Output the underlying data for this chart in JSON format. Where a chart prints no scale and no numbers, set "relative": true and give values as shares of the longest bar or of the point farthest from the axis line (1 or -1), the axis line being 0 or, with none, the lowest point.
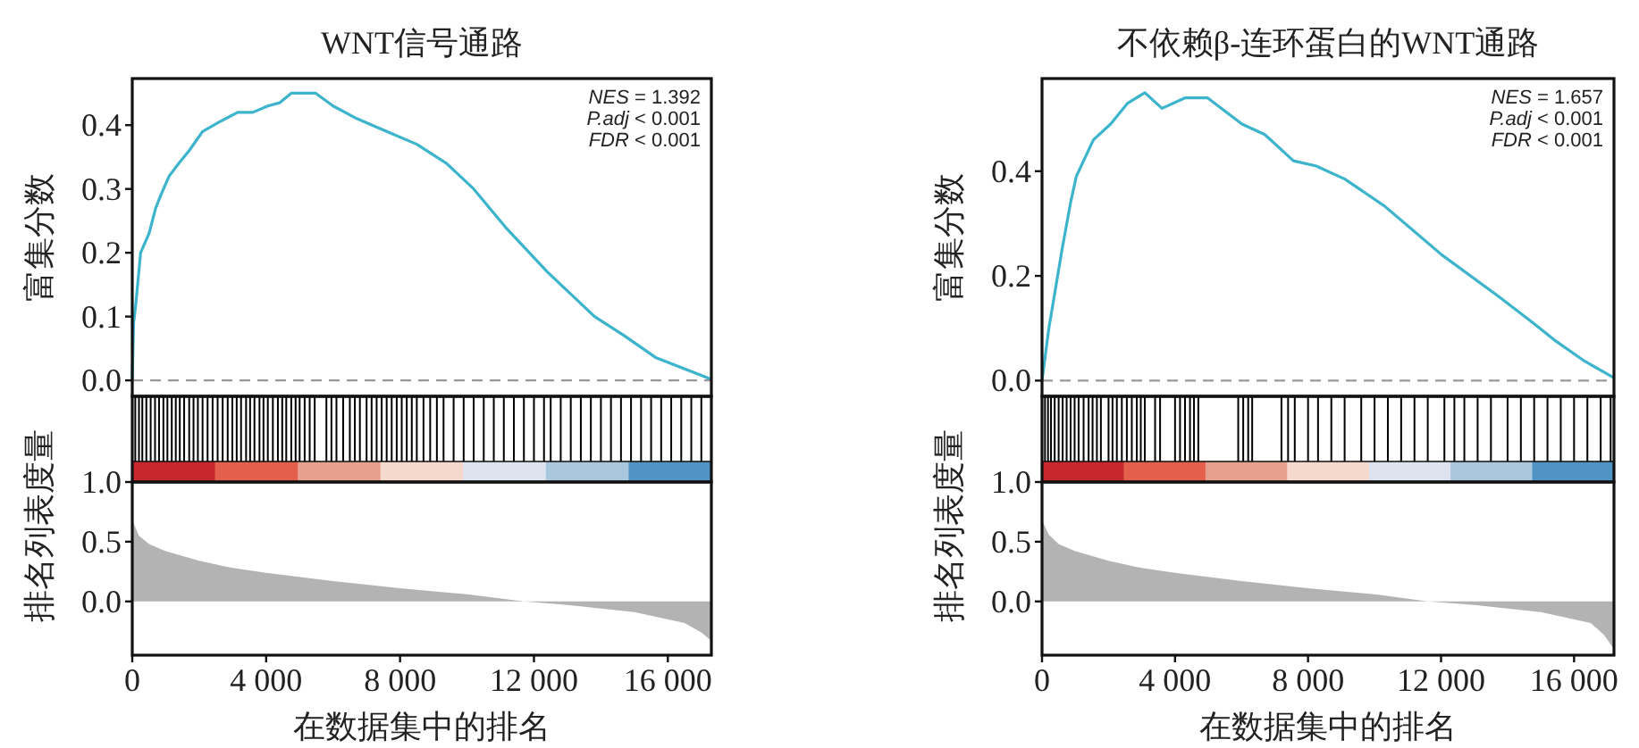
{
  "chart_data": [
    {
      "type": "line",
      "title": "WNT信号通路",
      "ylabel": "富集分数",
      "tick_labels": "y",
      "xlim": [
        0,
        17300
      ],
      "ylim": [
        -0.025,
        0.473
      ],
      "yticks": [
        {
          "value": 0,
          "label": "0.0"
        },
        {
          "value": 0.1,
          "label": "0.1"
        },
        {
          "value": 0.2,
          "label": "0.2"
        },
        {
          "value": 0.3,
          "label": "0.3"
        },
        {
          "value": 0.4,
          "label": "0.4"
        }
      ],
      "ref_lines": [
        {
          "axis": "y",
          "value": 0,
          "color": "#999999",
          "line_style": "dashed"
        }
      ],
      "annotations": [
        "NES = 1.392",
        "P.adj < 0.001",
        "FDR < 0.001"
      ],
      "series": [
        {
          "color": "#3cb4cc",
          "x": [
            0,
            40,
            107,
            250,
            500,
            700,
            850,
            1100,
            1390,
            1700,
            2100,
            2600,
            3150,
            3600,
            4050,
            4400,
            4750,
            5100,
            5480,
            6000,
            6720,
            7600,
            8500,
            9390,
            10200,
            11150,
            12400,
            13810,
            14700,
            15630,
            16400,
            17000,
            17230
          ],
          "values": [
            0,
            0.09,
            0.12,
            0.2,
            0.23,
            0.27,
            0.29,
            0.32,
            0.34,
            0.36,
            0.39,
            0.405,
            0.42,
            0.42,
            0.43,
            0.435,
            0.45,
            0.45,
            0.45,
            0.43,
            0.41,
            0.39,
            0.37,
            0.34,
            0.3,
            0.24,
            0.17,
            0.1,
            0.07,
            0.036,
            0.02,
            0.008,
            0.003
          ]
        }
      ]
    },
    {
      "type": "bar",
      "relative": true,
      "tick_labels": false,
      "xlim": [
        0,
        17300
      ],
      "x": [
        90,
        200,
        300,
        420,
        550,
        680,
        800,
        930,
        1050,
        1180,
        1300,
        1420,
        1550,
        1700,
        1830,
        1960,
        2100,
        2250,
        2400,
        2550,
        2700,
        2850,
        2990,
        3120,
        3250,
        3400,
        3520,
        3650,
        3800,
        3920,
        4050,
        4200,
        4350,
        4480,
        4600,
        4750,
        4880,
        5000,
        5150,
        5300,
        5450,
        5800,
        5950,
        6100,
        6300,
        6500,
        6650,
        6800,
        7000,
        7150,
        7300,
        7450,
        7600,
        7750,
        7900,
        8050,
        8200,
        8350,
        8500,
        8700,
        8900,
        9100,
        9300,
        9600,
        9900,
        10200,
        10500,
        10800,
        11100,
        11400,
        11700,
        12000,
        12300,
        12500,
        12800,
        13100,
        13400,
        13700,
        14000,
        14300,
        14600,
        14900,
        15200,
        15500,
        15800,
        16100,
        16400,
        16700,
        17000
      ],
      "series": [
        {
          "color": "#000000",
          "values": [
            1,
            1,
            1,
            1,
            1,
            1,
            1,
            1,
            1,
            1,
            1,
            1,
            1,
            1,
            1,
            1,
            1,
            1,
            1,
            1,
            1,
            1,
            1,
            1,
            1,
            1,
            1,
            1,
            1,
            1,
            1,
            1,
            1,
            1,
            1,
            1,
            1,
            1,
            1,
            1,
            1,
            1,
            1,
            1,
            1,
            1,
            1,
            1,
            1,
            1,
            1,
            1,
            1,
            1,
            1,
            1,
            1,
            1,
            1,
            1,
            1,
            1,
            1,
            1,
            1,
            1,
            1,
            1,
            1,
            1,
            1,
            1,
            1,
            1,
            1,
            1,
            1,
            1,
            1,
            1,
            1,
            1,
            1,
            1,
            1,
            1,
            1,
            1,
            1
          ]
        }
      ]
    },
    {
      "type": "area",
      "ylabel": "排名列表度量",
      "xlabel": "在数据集中的排名",
      "xlim": [
        0,
        17300
      ],
      "ylim": [
        -0.45,
        1.0
      ],
      "xticks": [
        0,
        {
          "value": 4000,
          "label": "4 000"
        },
        {
          "value": 8000,
          "label": "8 000"
        },
        {
          "value": 12000,
          "label": "12 000"
        },
        {
          "value": 16000,
          "label": "16 000"
        }
      ],
      "yticks": [
        {
          "value": 0,
          "label": "0.0"
        },
        {
          "value": 0.5,
          "label": "0.5"
        },
        {
          "value": 1,
          "label": "1.0"
        }
      ],
      "series": [
        {
          "color": "#b3b3b3",
          "x": [
            0,
            200,
            500,
            1000,
            2000,
            3000,
            4000,
            6000,
            8000,
            10000,
            11700,
            13000,
            15000,
            16500,
            17000,
            17300
          ],
          "values": [
            0.68,
            0.55,
            0.48,
            0.42,
            0.34,
            0.28,
            0.24,
            0.17,
            0.11,
            0.06,
            0,
            -0.03,
            -0.09,
            -0.18,
            -0.26,
            -0.33
          ]
        }
      ]
    },
    {
      "type": "line",
      "title": "不依赖β-连环蛋白的WNT通路",
      "ylabel": "富集分数",
      "tick_labels": "y",
      "xlim": [
        0,
        17200
      ],
      "ylim": [
        -0.03,
        0.577
      ],
      "yticks": [
        {
          "value": 0,
          "label": "0.0"
        },
        {
          "value": 0.2,
          "label": "0.2"
        },
        {
          "value": 0.4,
          "label": "0.4"
        }
      ],
      "ref_lines": [
        {
          "axis": "y",
          "value": 0,
          "color": "#999999",
          "line_style": "dashed"
        }
      ],
      "annotations": [
        "NES = 1.657",
        "P.adj < 0.001",
        "FDR < 0.001"
      ],
      "series": [
        {
          "color": "#3cb4cc",
          "x": [
            0,
            206,
            601,
            859,
            1031,
            1546,
            2062,
            2577,
            3092,
            3608,
            4295,
            4982,
            6013,
            6700,
            7559,
            8246,
            9105,
            10308,
            12026,
            13744,
            14775,
            15462,
            16321,
            17180
          ],
          "values": [
            0,
            0.1,
            0.25,
            0.34,
            0.39,
            0.46,
            0.49,
            0.53,
            0.55,
            0.52,
            0.54,
            0.54,
            0.49,
            0.47,
            0.42,
            0.41,
            0.385,
            0.333,
            0.24,
            0.16,
            0.11,
            0.075,
            0.037,
            0.006
          ]
        }
      ]
    },
    {
      "type": "bar",
      "relative": true,
      "tick_labels": false,
      "xlim": [
        0,
        17200
      ],
      "x": [
        90,
        180,
        270,
        380,
        500,
        620,
        740,
        860,
        980,
        1100,
        1250,
        1400,
        1520,
        1650,
        1770,
        2000,
        2120,
        2250,
        2400,
        2550,
        2700,
        2850,
        2970,
        3090,
        3400,
        3550,
        4000,
        4150,
        4300,
        4450,
        4570,
        4700,
        5900,
        6050,
        6200,
        6320,
        7200,
        7400,
        7600,
        8000,
        8300,
        8700,
        9100,
        9600,
        10000,
        10400,
        10800,
        11200,
        11600,
        12100,
        12400,
        12700,
        13100,
        13500,
        14000,
        14400,
        14800,
        15200,
        15600,
        16000,
        16400,
        16800,
        17100
      ],
      "series": [
        {
          "color": "#000000",
          "values": [
            1,
            1,
            1,
            1,
            1,
            1,
            1,
            1,
            1,
            1,
            1,
            1,
            1,
            1,
            1,
            1,
            1,
            1,
            1,
            1,
            1,
            1,
            1,
            1,
            1,
            1,
            1,
            1,
            1,
            1,
            1,
            1,
            1,
            1,
            1,
            1,
            1,
            1,
            1,
            1,
            1,
            1,
            1,
            1,
            1,
            1,
            1,
            1,
            1,
            1,
            1,
            1,
            1,
            1,
            1,
            1,
            1,
            1,
            1,
            1,
            1,
            1,
            1
          ]
        }
      ]
    },
    {
      "type": "area",
      "ylabel": "排名列表度量",
      "xlabel": "在数据集中的排名",
      "xlim": [
        0,
        17200
      ],
      "ylim": [
        -0.45,
        1.0
      ],
      "xticks": [
        0,
        {
          "value": 4000,
          "label": "4 000"
        },
        {
          "value": 8000,
          "label": "8 000"
        },
        {
          "value": 12000,
          "label": "12 000"
        },
        {
          "value": 16000,
          "label": "16 000"
        }
      ],
      "yticks": [
        {
          "value": 0,
          "label": "0.0"
        },
        {
          "value": 0.5,
          "label": "0.5"
        },
        {
          "value": 1,
          "label": "1.0"
        }
      ],
      "series": [
        {
          "color": "#b3b3b3",
          "x": [
            0,
            200,
            500,
            1000,
            2000,
            3000,
            4000,
            6000,
            8000,
            10000,
            11600,
            13000,
            15000,
            16500,
            16900,
            17200
          ],
          "values": [
            0.68,
            0.56,
            0.48,
            0.42,
            0.34,
            0.28,
            0.24,
            0.17,
            0.11,
            0.06,
            0,
            -0.03,
            -0.09,
            -0.18,
            -0.28,
            -0.4
          ]
        }
      ]
    }
  ]
}
